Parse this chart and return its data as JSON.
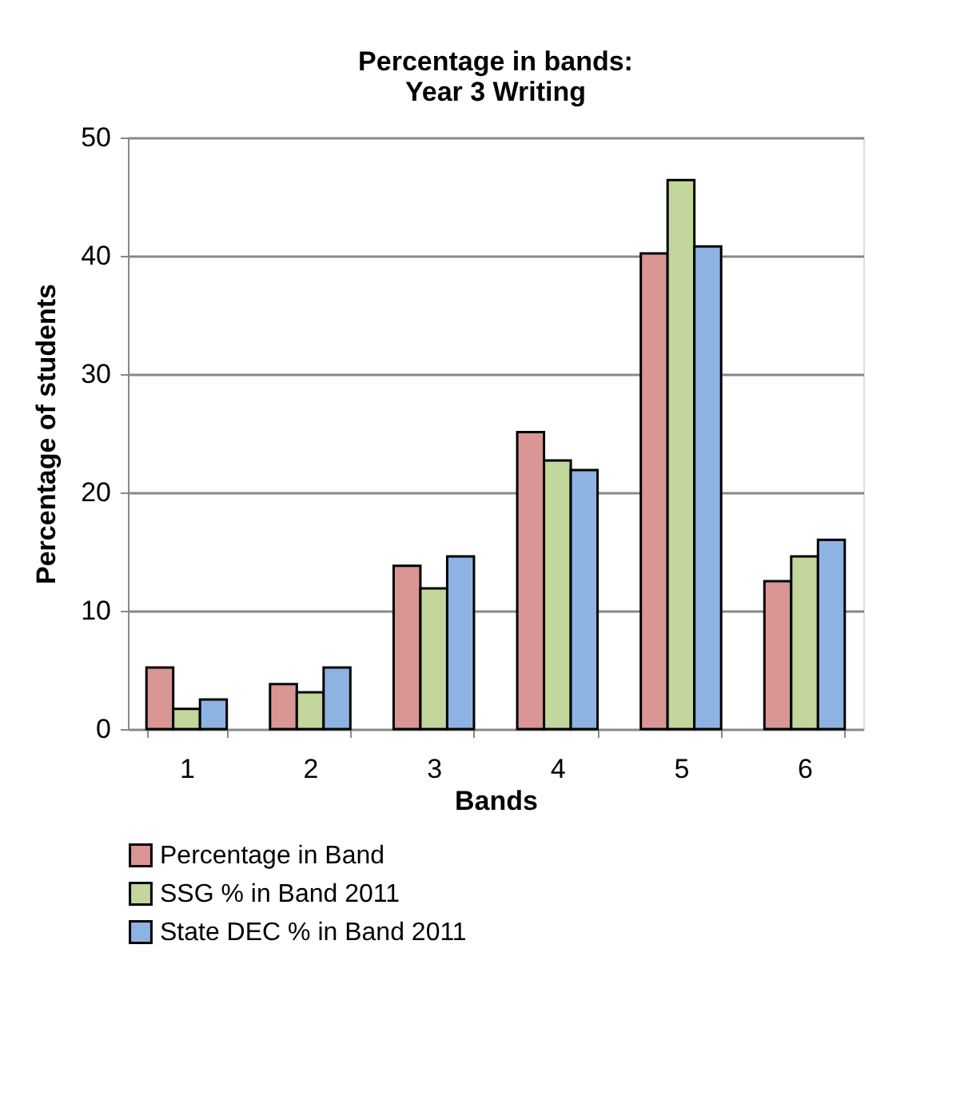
{
  "chart_data": {
    "type": "bar",
    "title": [
      "Percentage in bands:",
      "Year 3 Writing"
    ],
    "xlabel": "Bands",
    "ylabel": "Percentage of students",
    "categories": [
      "1",
      "2",
      "3",
      "4",
      "5",
      "6"
    ],
    "series": [
      {
        "name": "Percentage in Band",
        "color": "#d99694",
        "values": [
          5.2,
          3.8,
          13.8,
          25.1,
          40.2,
          12.5
        ]
      },
      {
        "name": "SSG % in Band 2011",
        "color": "#c3d69b",
        "values": [
          1.7,
          3.1,
          11.9,
          22.7,
          46.4,
          14.6
        ]
      },
      {
        "name": "State DEC % in Band 2011",
        "color": "#8db3e2",
        "values": [
          2.5,
          5.2,
          14.6,
          21.9,
          40.8,
          16.0
        ]
      }
    ],
    "ylim": [
      0,
      50
    ],
    "yticks": [
      0,
      10,
      20,
      30,
      40,
      50
    ],
    "grid": "y",
    "legend": "bottom"
  }
}
